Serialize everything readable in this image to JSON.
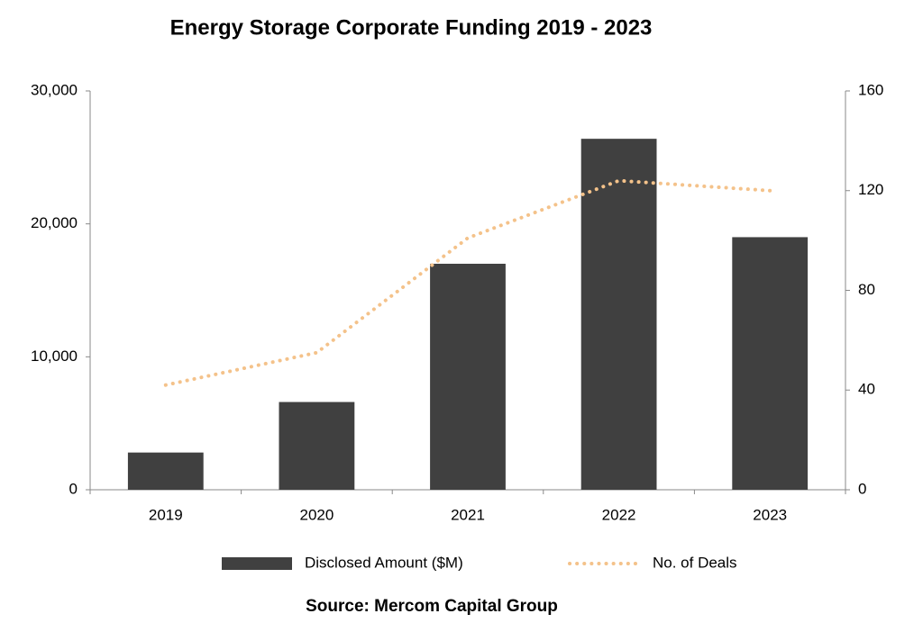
{
  "chart_data": {
    "type": "bar_line",
    "title": "Energy Storage Corporate Funding 2019 - 2023",
    "categories": [
      "2019",
      "2020",
      "2021",
      "2022",
      "2023"
    ],
    "series": [
      {
        "name": "Disclosed Amount ($M)",
        "type": "bar",
        "color": "#404040",
        "values": [
          2800,
          6600,
          17000,
          26400,
          19000
        ]
      },
      {
        "name": "No. of Deals",
        "type": "line",
        "axis": "y2",
        "color": "#f4c28a",
        "values": [
          42,
          55,
          101,
          124,
          120
        ]
      }
    ],
    "ylim": [
      0,
      30000
    ],
    "yticks": [
      0,
      {
        "value": 10000,
        "label": "10,000"
      },
      {
        "value": 20000,
        "label": "20,000"
      },
      {
        "value": 30000,
        "label": "30,000"
      }
    ],
    "y2lim": [
      0,
      160
    ],
    "y2ticks": [
      0,
      40,
      80,
      120,
      160
    ],
    "grid": false,
    "legend": "bottom",
    "source": "Source: Mercom Capital Group"
  }
}
